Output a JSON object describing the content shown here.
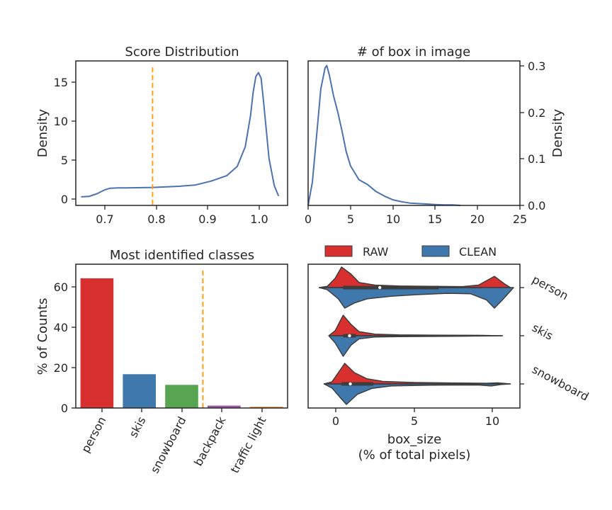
{
  "colors": {
    "line": "#4c72b0",
    "threshold": "#ff9f1c",
    "raw": "#d7302f",
    "clean": "#3f78ad",
    "green": "#57a551",
    "purple": "#9a58a5",
    "orange": "#e6891d",
    "violin_edge": "#3d3d3d"
  },
  "panels": {
    "score": {
      "title": "Score Distribution",
      "ylabel": "Density",
      "xticks": [
        "0.7",
        "0.8",
        "0.9",
        "1.0"
      ],
      "yticks": [
        "0",
        "5",
        "10",
        "15"
      ]
    },
    "boxes": {
      "title": "# of box in image",
      "ylabel": "Density",
      "xticks": [
        "0",
        "5",
        "10",
        "15",
        "20",
        "25"
      ],
      "yticks": [
        "0.0",
        "0.1",
        "0.2",
        "0.3"
      ]
    },
    "classes": {
      "title": "Most identified classes",
      "ylabel": "% of Counts",
      "yticks": [
        "0",
        "20",
        "40",
        "60"
      ]
    },
    "violin": {
      "xlabel_line1": "box_size",
      "xlabel_line2": "(% of total pixels)",
      "xticks": [
        "0",
        "5",
        "10"
      ],
      "legend": [
        "RAW",
        "CLEAN"
      ]
    }
  },
  "chart_data": [
    {
      "type": "line",
      "title": "Score Distribution",
      "xlabel": "",
      "ylabel": "Density",
      "xlim": [
        0.655,
        1.055
      ],
      "ylim": [
        -1.0,
        17.5
      ],
      "threshold_x": 0.8,
      "x": [
        0.665,
        0.68,
        0.695,
        0.71,
        0.72,
        0.735,
        0.75,
        0.8,
        0.85,
        0.88,
        0.91,
        0.94,
        0.96,
        0.975,
        0.985,
        0.99,
        0.995,
        1.0,
        1.005,
        1.01,
        1.02,
        1.03,
        1.038
      ],
      "y": [
        0.1,
        0.15,
        0.5,
        1.0,
        1.2,
        1.25,
        1.25,
        1.3,
        1.45,
        1.6,
        2.1,
        2.8,
        4.0,
        6.5,
        10.5,
        13.5,
        15.5,
        16.0,
        15.3,
        12.0,
        5.0,
        1.5,
        0.2
      ]
    },
    {
      "type": "line",
      "title": "# of box in image",
      "xlabel": "",
      "ylabel": "Density",
      "xlim": [
        0,
        25
      ],
      "ylim": [
        0,
        0.31
      ],
      "x": [
        0,
        0.5,
        1,
        1.5,
        2,
        2.2,
        2.5,
        3,
        3.5,
        4,
        4.5,
        5,
        5.5,
        6,
        7,
        8,
        9,
        10,
        11,
        12,
        13,
        14,
        15,
        16,
        17,
        18
      ],
      "y": [
        0.0,
        0.05,
        0.15,
        0.25,
        0.295,
        0.3,
        0.28,
        0.235,
        0.2,
        0.16,
        0.115,
        0.085,
        0.07,
        0.055,
        0.045,
        0.03,
        0.02,
        0.012,
        0.008,
        0.005,
        0.004,
        0.003,
        0.002,
        0.001,
        0.001,
        0.0
      ]
    },
    {
      "type": "bar",
      "title": "Most identified classes",
      "xlabel": "",
      "ylabel": "% of Counts",
      "ylim": [
        0,
        71.5
      ],
      "threshold_index": 2.5,
      "categories": [
        "person",
        "skis",
        "snowboard",
        "backpack",
        "traffic light"
      ],
      "values": [
        64.5,
        16.8,
        11.5,
        1.2,
        0.6
      ]
    },
    {
      "type": "violin",
      "xlabel": "box_size\n(% of total pixels)",
      "xlim": [
        -1.7,
        11.6
      ],
      "categories": [
        "person",
        "skis",
        "snowboard"
      ],
      "series": [
        {
          "name": "RAW",
          "profiles": [
            [
              [
                -1.0,
                0.0
              ],
              [
                -0.5,
                0.06
              ],
              [
                0.0,
                0.45
              ],
              [
                0.4,
                1.0
              ],
              [
                1.0,
                0.65
              ],
              [
                1.5,
                0.25
              ],
              [
                2.5,
                0.12
              ],
              [
                4.0,
                0.08
              ],
              [
                6.0,
                0.06
              ],
              [
                8.0,
                0.05
              ],
              [
                9.0,
                0.12
              ],
              [
                10.0,
                0.55
              ],
              [
                10.6,
                0.2
              ],
              [
                11.0,
                0.0
              ]
            ],
            [
              [
                -0.4,
                0.0
              ],
              [
                0.0,
                0.25
              ],
              [
                0.5,
                1.0
              ],
              [
                1.0,
                0.55
              ],
              [
                1.5,
                0.2
              ],
              [
                2.5,
                0.08
              ],
              [
                4.0,
                0.04
              ],
              [
                6.0,
                0.03
              ],
              [
                9.0,
                0.02
              ],
              [
                10.5,
                0.0
              ]
            ],
            [
              [
                -0.7,
                0.0
              ],
              [
                -0.2,
                0.1
              ],
              [
                0.2,
                0.55
              ],
              [
                0.6,
                1.0
              ],
              [
                1.2,
                0.55
              ],
              [
                2.0,
                0.25
              ],
              [
                3.0,
                0.12
              ],
              [
                5.0,
                0.07
              ],
              [
                8.0,
                0.04
              ],
              [
                9.5,
                0.03
              ],
              [
                10.2,
                0.05
              ],
              [
                11.0,
                0.0
              ]
            ]
          ]
        },
        {
          "name": "CLEAN",
          "profiles": [
            [
              [
                -1.0,
                0.0
              ],
              [
                -0.5,
                0.1
              ],
              [
                0.2,
                0.55
              ],
              [
                0.6,
                1.0
              ],
              [
                1.2,
                0.75
              ],
              [
                2.0,
                0.55
              ],
              [
                3.5,
                0.42
              ],
              [
                5.0,
                0.35
              ],
              [
                7.0,
                0.28
              ],
              [
                8.5,
                0.3
              ],
              [
                9.5,
                0.6
              ],
              [
                10.0,
                1.0
              ],
              [
                10.5,
                0.6
              ],
              [
                11.2,
                0.0
              ]
            ],
            [
              [
                -0.4,
                0.0
              ],
              [
                0.0,
                0.35
              ],
              [
                0.5,
                1.0
              ],
              [
                1.0,
                0.45
              ],
              [
                1.5,
                0.15
              ],
              [
                2.5,
                0.06
              ],
              [
                4.0,
                0.04
              ],
              [
                8.0,
                0.02
              ],
              [
                10.5,
                0.0
              ]
            ],
            [
              [
                -0.7,
                0.0
              ],
              [
                -0.2,
                0.2
              ],
              [
                0.3,
                0.65
              ],
              [
                0.7,
                1.0
              ],
              [
                1.4,
                0.5
              ],
              [
                2.3,
                0.22
              ],
              [
                3.5,
                0.1
              ],
              [
                6.0,
                0.06
              ],
              [
                9.0,
                0.05
              ],
              [
                9.8,
                0.1
              ],
              [
                10.4,
                0.03
              ],
              [
                11.0,
                0.0
              ]
            ]
          ]
        }
      ],
      "box": [
        {
          "q1": 0.5,
          "median": 2.8,
          "q3": 6.5,
          "whisker_low": -0.3,
          "whisker_high": 9.2
        },
        {
          "q1": 0.5,
          "median": 0.9,
          "q3": 1.3,
          "whisker_low": 0.0,
          "whisker_high": 2.3
        },
        {
          "q1": 0.4,
          "median": 0.95,
          "q3": 2.4,
          "whisker_low": -0.3,
          "whisker_high": 4.8
        }
      ]
    }
  ]
}
